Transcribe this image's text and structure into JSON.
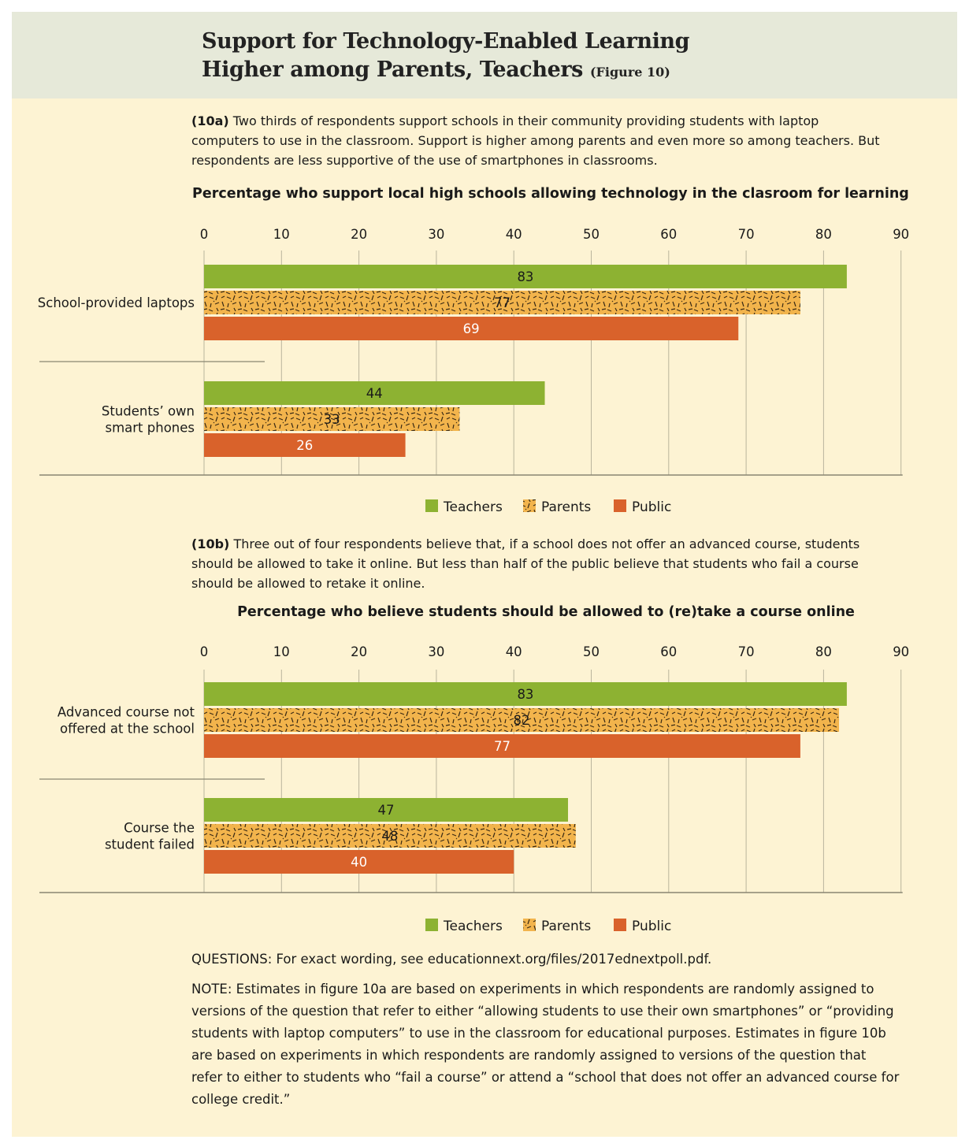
{
  "header": {
    "title_line1": "Support for Technology-Enabled Learning",
    "title_line2": "Higher among Parents, Teachers",
    "figure_ref": "(Figure 10)"
  },
  "colors": {
    "teachers": "#8db232",
    "parents": "#f2b44c",
    "public": "#d9622b",
    "panel": "#fdf3d3",
    "header": "#e6e9d9"
  },
  "section_a": {
    "tag": "(10a)",
    "text": "Two thirds of respondents support schools in their community providing students with laptop computers to use in the classroom. Support is higher among parents and even more so among teachers. But respondents are less supportive of the use of smartphones in classrooms."
  },
  "section_b": {
    "tag": "(10b)",
    "text": "Three out of four respondents believe that, if a school does not offer an advanced course, students should be allowed to take it online. But less than half of the public believe that students who fail a course should be allowed to retake it online."
  },
  "questions": "QUESTIONS: For exact wording, see educationnext.org/files/2017ednextpoll.pdf.",
  "note": "NOTE: Estimates in figure 10a are based on experiments in which respondents are randomly assigned to versions of the question that refer to either “allowing students to use their own smartphones” or “providing students with laptop computers” to use in the classroom for educational purposes. Estimates in figure 10b are based on experiments in which respondents are randomly assigned to versions of the question that refer to either to students who “fail a course” or attend a “school that does not offer an advanced course for college credit.”",
  "chart_data": [
    {
      "type": "bar",
      "orientation": "horizontal",
      "title": "Percentage who support local high schools allowing technology in the clasroom for learning",
      "categories": [
        [
          "School-provided laptops"
        ],
        [
          "Students’ own",
          "smart phones"
        ]
      ],
      "series": [
        {
          "name": "Teachers",
          "values": [
            83,
            44
          ]
        },
        {
          "name": "Parents",
          "values": [
            77,
            33
          ]
        },
        {
          "name": "Public",
          "values": [
            69,
            26
          ]
        }
      ],
      "xlim": [
        0,
        90
      ],
      "ticks": [
        0,
        10,
        20,
        30,
        40,
        50,
        60,
        70,
        80,
        90
      ],
      "grid": true,
      "legend": "bottom-center"
    },
    {
      "type": "bar",
      "orientation": "horizontal",
      "title": "Percentage who believe students should be allowed to (re)take a course online",
      "categories": [
        [
          "Advanced course not",
          "offered at the school"
        ],
        [
          "Course the",
          "student failed"
        ]
      ],
      "series": [
        {
          "name": "Teachers",
          "values": [
            83,
            47
          ]
        },
        {
          "name": "Parents",
          "values": [
            82,
            48
          ]
        },
        {
          "name": "Public",
          "values": [
            77,
            40
          ]
        }
      ],
      "xlim": [
        0,
        90
      ],
      "ticks": [
        0,
        10,
        20,
        30,
        40,
        50,
        60,
        70,
        80,
        90
      ],
      "grid": true,
      "legend": "bottom-center"
    }
  ]
}
